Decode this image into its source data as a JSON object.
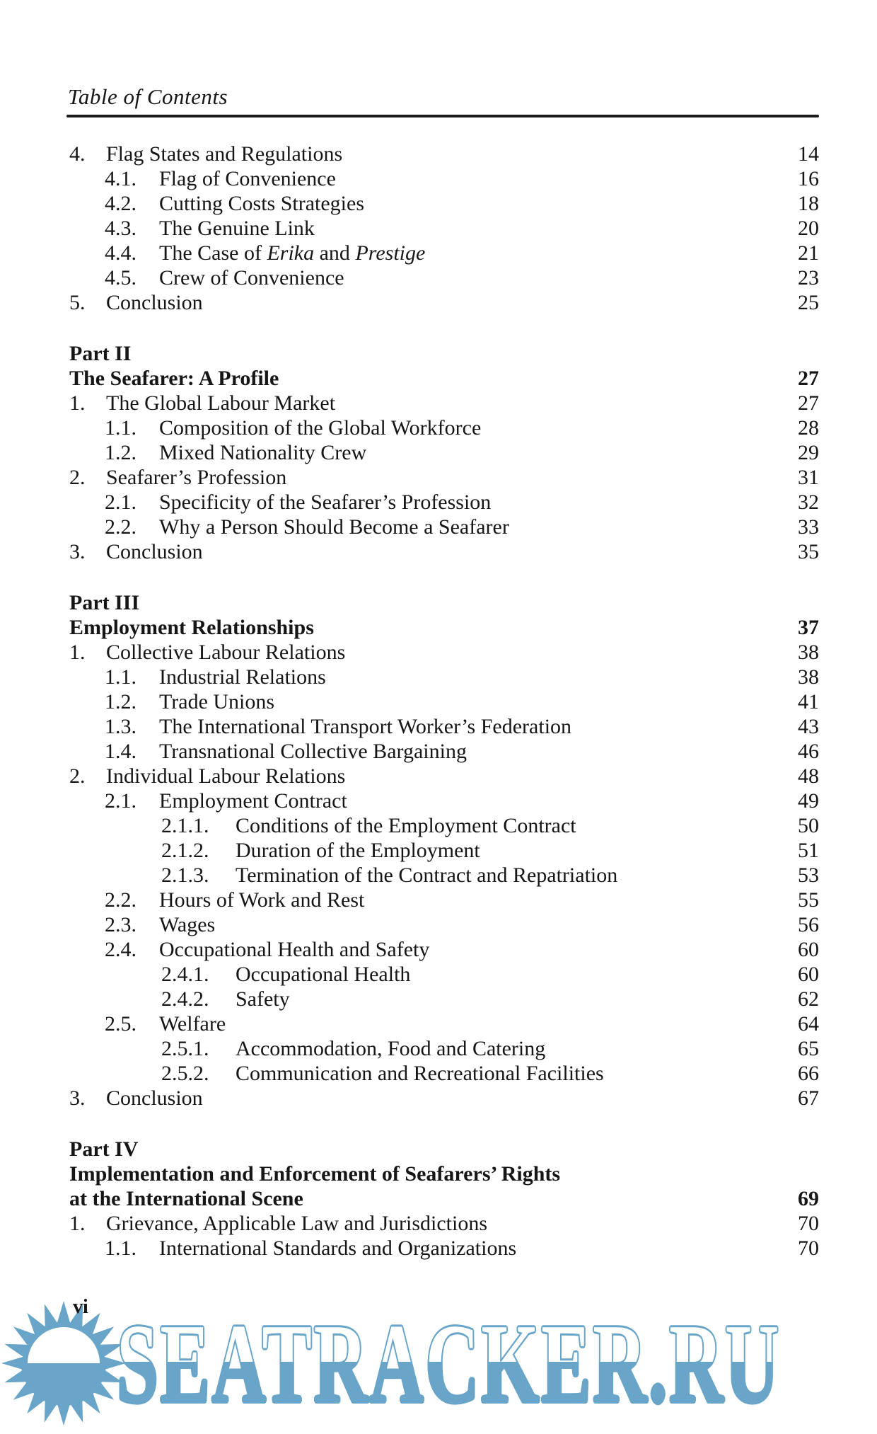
{
  "header": {
    "title": "Table of Contents"
  },
  "footer": {
    "page_number": "vi"
  },
  "watermark": {
    "text": "SEATRACKER.RU",
    "color": "#69a5c8",
    "icon": "sun-logo"
  },
  "toc": {
    "blocks": [
      {
        "type": "entry",
        "level": 1,
        "num": "4.",
        "parts": [
          {
            "t": "Flag States and Regulations"
          }
        ],
        "page": "14"
      },
      {
        "type": "entry",
        "level": 2,
        "num": "4.1.",
        "parts": [
          {
            "t": "Flag of Convenience"
          }
        ],
        "page": "16"
      },
      {
        "type": "entry",
        "level": 2,
        "num": "4.2.",
        "parts": [
          {
            "t": "Cutting Costs Strategies"
          }
        ],
        "page": "18"
      },
      {
        "type": "entry",
        "level": 2,
        "num": "4.3.",
        "parts": [
          {
            "t": "The Genuine Link"
          }
        ],
        "page": "20"
      },
      {
        "type": "entry",
        "level": 2,
        "num": "4.4.",
        "parts": [
          {
            "t": "The Case of "
          },
          {
            "t": "Erika",
            "italic": true
          },
          {
            "t": " and "
          },
          {
            "t": "Prestige",
            "italic": true
          }
        ],
        "page": "21"
      },
      {
        "type": "entry",
        "level": 2,
        "num": "4.5.",
        "parts": [
          {
            "t": "Crew of Convenience"
          }
        ],
        "page": "23"
      },
      {
        "type": "entry",
        "level": 1,
        "num": "5.",
        "parts": [
          {
            "t": "Conclusion"
          }
        ],
        "page": "25"
      },
      {
        "type": "gap"
      },
      {
        "type": "part-label",
        "text": "Part II"
      },
      {
        "type": "part-title",
        "text": "The Seafarer: A Profile",
        "page": "27"
      },
      {
        "type": "entry",
        "level": 1,
        "num": "1.",
        "parts": [
          {
            "t": "The Global Labour Market"
          }
        ],
        "page": "27"
      },
      {
        "type": "entry",
        "level": 2,
        "num": "1.1.",
        "parts": [
          {
            "t": "Composition of the Global Workforce"
          }
        ],
        "page": "28"
      },
      {
        "type": "entry",
        "level": 2,
        "num": "1.2.",
        "parts": [
          {
            "t": "Mixed Nationality Crew"
          }
        ],
        "page": "29"
      },
      {
        "type": "entry",
        "level": 1,
        "num": "2.",
        "parts": [
          {
            "t": "Seafarer’s Profession"
          }
        ],
        "page": "31"
      },
      {
        "type": "entry",
        "level": 2,
        "num": "2.1.",
        "parts": [
          {
            "t": "Specificity of the Seafarer’s Profession"
          }
        ],
        "page": "32"
      },
      {
        "type": "entry",
        "level": 2,
        "num": "2.2.",
        "parts": [
          {
            "t": "Why a Person Should Become a Seafarer"
          }
        ],
        "page": "33"
      },
      {
        "type": "entry",
        "level": 1,
        "num": "3.",
        "parts": [
          {
            "t": "Conclusion"
          }
        ],
        "page": "35"
      },
      {
        "type": "gap"
      },
      {
        "type": "part-label",
        "text": "Part III"
      },
      {
        "type": "part-title",
        "text": "Employment Relationships",
        "page": "37"
      },
      {
        "type": "entry",
        "level": 1,
        "num": "1.",
        "parts": [
          {
            "t": "Collective Labour Relations"
          }
        ],
        "page": "38"
      },
      {
        "type": "entry",
        "level": 2,
        "num": "1.1.",
        "parts": [
          {
            "t": "Industrial Relations"
          }
        ],
        "page": "38"
      },
      {
        "type": "entry",
        "level": 2,
        "num": "1.2.",
        "parts": [
          {
            "t": "Trade Unions"
          }
        ],
        "page": "41"
      },
      {
        "type": "entry",
        "level": 2,
        "num": "1.3.",
        "parts": [
          {
            "t": "The International Transport Worker’s Federation"
          }
        ],
        "page": "43"
      },
      {
        "type": "entry",
        "level": 2,
        "num": "1.4.",
        "parts": [
          {
            "t": "Transnational Collective Bargaining"
          }
        ],
        "page": "46"
      },
      {
        "type": "entry",
        "level": 1,
        "num": "2.",
        "parts": [
          {
            "t": "Individual Labour Relations"
          }
        ],
        "page": "48"
      },
      {
        "type": "entry",
        "level": 2,
        "num": "2.1.",
        "parts": [
          {
            "t": "Employment Contract"
          }
        ],
        "page": "49"
      },
      {
        "type": "entry",
        "level": 3,
        "num": "2.1.1.",
        "parts": [
          {
            "t": "Conditions of the Employment Contract"
          }
        ],
        "page": "50"
      },
      {
        "type": "entry",
        "level": 3,
        "num": "2.1.2.",
        "parts": [
          {
            "t": "Duration of the Employment"
          }
        ],
        "page": "51"
      },
      {
        "type": "entry",
        "level": 3,
        "num": "2.1.3.",
        "parts": [
          {
            "t": "Termination of the Contract and Repatriation"
          }
        ],
        "page": "53"
      },
      {
        "type": "entry",
        "level": 2,
        "num": "2.2.",
        "parts": [
          {
            "t": "Hours of Work and Rest"
          }
        ],
        "page": "55"
      },
      {
        "type": "entry",
        "level": 2,
        "num": "2.3.",
        "parts": [
          {
            "t": "Wages"
          }
        ],
        "page": "56"
      },
      {
        "type": "entry",
        "level": 2,
        "num": "2.4.",
        "parts": [
          {
            "t": "Occupational Health and Safety"
          }
        ],
        "page": "60"
      },
      {
        "type": "entry",
        "level": 3,
        "num": "2.4.1.",
        "parts": [
          {
            "t": "Occupational Health"
          }
        ],
        "page": "60"
      },
      {
        "type": "entry",
        "level": 3,
        "num": "2.4.2.",
        "parts": [
          {
            "t": "Safety"
          }
        ],
        "page": "62"
      },
      {
        "type": "entry",
        "level": 2,
        "num": "2.5.",
        "parts": [
          {
            "t": "Welfare"
          }
        ],
        "page": "64"
      },
      {
        "type": "entry",
        "level": 3,
        "num": "2.5.1.",
        "parts": [
          {
            "t": "Accommodation, Food and Catering"
          }
        ],
        "page": "65"
      },
      {
        "type": "entry",
        "level": 3,
        "num": "2.5.2.",
        "parts": [
          {
            "t": "Communication and Recreational Facilities"
          }
        ],
        "page": "66"
      },
      {
        "type": "entry",
        "level": 1,
        "num": "3.",
        "parts": [
          {
            "t": "Conclusion"
          }
        ],
        "page": "67"
      },
      {
        "type": "gap"
      },
      {
        "type": "part-label",
        "text": "Part IV"
      },
      {
        "type": "part-title",
        "text": "Implementation and Enforcement of Seafarers’ Rights",
        "page": ""
      },
      {
        "type": "part-title",
        "text": "at the International Scene",
        "page": "69"
      },
      {
        "type": "entry",
        "level": 1,
        "num": "1.",
        "parts": [
          {
            "t": "Grievance, Applicable Law and Jurisdictions"
          }
        ],
        "page": "70"
      },
      {
        "type": "entry",
        "level": 2,
        "num": "1.1.",
        "parts": [
          {
            "t": "International Standards and Organizations"
          }
        ],
        "page": "70"
      }
    ]
  }
}
